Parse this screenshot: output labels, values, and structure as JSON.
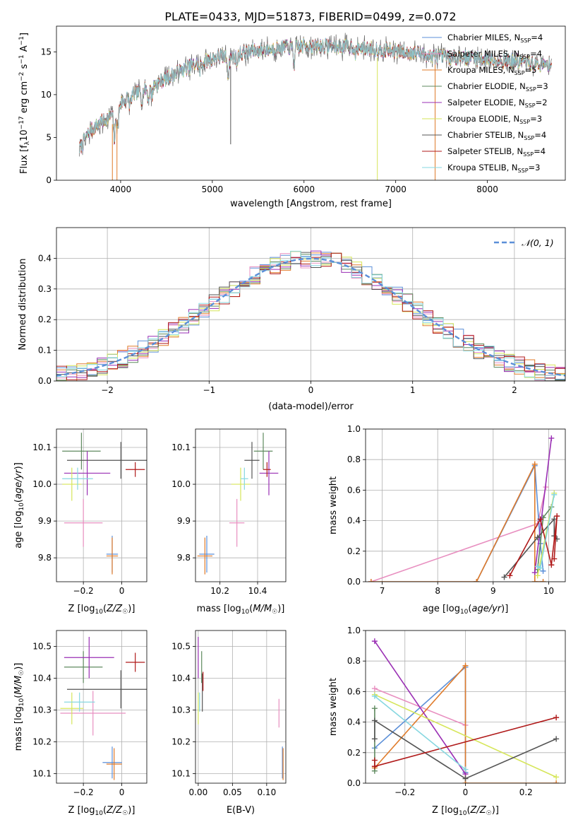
{
  "title": "PLATE=0433, MJD=51873, FIBERID=0499, z=0.072",
  "colors": {
    "Chabrier MILES": "#5b8fd8",
    "Salpeter MILES": "#e88fc0",
    "Kroupa MILES": "#e07b2a",
    "Chabrier ELODIE": "#5f8a5f",
    "Salpeter ELODIE": "#9a2fb4",
    "Kroupa ELODIE": "#d6e65a",
    "Chabrier STELIB": "#555555",
    "Salpeter STELIB": "#b01a1a",
    "Kroupa STELIB": "#86d7e0"
  },
  "chart_data": [
    {
      "id": "spectrum",
      "type": "line",
      "xlabel": "wavelength [Angstrom, rest frame]",
      "ylabel": "Flux [f_λ10^-17 erg cm^-2 s^-1 A^-1]",
      "xlim": [
        3300,
        8850
      ],
      "ylim": [
        0,
        18
      ],
      "xticks": [
        4000,
        5000,
        6000,
        7000,
        8000
      ],
      "yticks": [
        0,
        5,
        10,
        15
      ],
      "legend_position": "right",
      "series": [
        {
          "name": "Chabrier MILES",
          "nssp": "4"
        },
        {
          "name": "Salpeter MILES",
          "nssp": "4"
        },
        {
          "name": "Kroupa MILES",
          "nssp": "5"
        },
        {
          "name": "Chabrier ELODIE",
          "nssp": "3"
        },
        {
          "name": "Salpeter ELODIE",
          "nssp": "2"
        },
        {
          "name": "Kroupa ELODIE",
          "nssp": "3"
        },
        {
          "name": "Chabrier STELIB",
          "nssp": "4"
        },
        {
          "name": "Salpeter STELIB",
          "nssp": "4"
        },
        {
          "name": "Kroupa STELIB",
          "nssp": "3"
        }
      ],
      "continuum": [
        [
          3550,
          3.6
        ],
        [
          3650,
          5.5
        ],
        [
          3750,
          6.5
        ],
        [
          3850,
          7.2
        ],
        [
          3950,
          7.8
        ],
        [
          4000,
          9.0
        ],
        [
          4100,
          9.8
        ],
        [
          4200,
          10.3
        ],
        [
          4300,
          10.8
        ],
        [
          4400,
          11.3
        ],
        [
          4500,
          12.0
        ],
        [
          4600,
          12.5
        ],
        [
          4700,
          13.0
        ],
        [
          4800,
          13.5
        ],
        [
          4900,
          13.8
        ],
        [
          5000,
          14.2
        ],
        [
          5100,
          14.5
        ],
        [
          5200,
          14.3
        ],
        [
          5300,
          14.8
        ],
        [
          5400,
          15.0
        ],
        [
          5500,
          15.2
        ],
        [
          5600,
          15.3
        ],
        [
          5700,
          15.4
        ],
        [
          5800,
          15.5
        ],
        [
          5900,
          15.5
        ],
        [
          6000,
          15.7
        ],
        [
          6100,
          15.6
        ],
        [
          6200,
          15.7
        ],
        [
          6300,
          15.7
        ],
        [
          6400,
          15.6
        ],
        [
          6500,
          15.6
        ],
        [
          6600,
          15.5
        ],
        [
          6700,
          15.4
        ],
        [
          6800,
          15.3
        ],
        [
          6900,
          15.2
        ],
        [
          7000,
          15.1
        ],
        [
          7100,
          14.9
        ],
        [
          7200,
          15.0
        ],
        [
          7300,
          14.7
        ],
        [
          7400,
          14.5
        ],
        [
          7500,
          14.5
        ],
        [
          7600,
          14.3
        ],
        [
          7700,
          14.4
        ],
        [
          7800,
          14.3
        ],
        [
          7900,
          14.2
        ],
        [
          8000,
          14.2
        ],
        [
          8100,
          14.0
        ],
        [
          8200,
          14.0
        ],
        [
          8300,
          13.9
        ],
        [
          8400,
          13.8
        ],
        [
          8500,
          13.6
        ],
        [
          8600,
          13.5
        ],
        [
          8700,
          13.6
        ]
      ],
      "absorption": [
        [
          3933,
          3.0
        ],
        [
          3968,
          2.5
        ],
        [
          4102,
          1.2
        ],
        [
          4227,
          1.0
        ],
        [
          4304,
          1.5
        ],
        [
          4340,
          1.2
        ],
        [
          4861,
          1.0
        ],
        [
          5175,
          2.0
        ],
        [
          5270,
          1.0
        ],
        [
          5893,
          2.0
        ],
        [
          6563,
          1.0
        ]
      ],
      "spikes": [
        [
          3910,
          0
        ],
        [
          3960,
          0
        ],
        [
          5200,
          4.2
        ],
        [
          6800,
          0
        ],
        [
          7430,
          0
        ]
      ]
    },
    {
      "id": "residuals",
      "type": "histogram",
      "xlabel": "(data-model)/error",
      "ylabel": "Normed distribution",
      "xlim": [
        -2.5,
        2.5
      ],
      "ylim": [
        0,
        0.5
      ],
      "xticks": [
        -2,
        -1,
        0,
        1,
        2
      ],
      "yticks": [
        0.0,
        0.1,
        0.2,
        0.3,
        0.4
      ],
      "legend": "𝒩(0, 1)",
      "bin_width": 0.1,
      "reference_pdf": "normal(0,1)"
    },
    {
      "id": "age-vs-Z",
      "type": "errorbar",
      "xlabel": "Z [log₁₀(Z/Z☉)]",
      "ylabel": "age  [log₁₀(age/yr)]",
      "xlim": [
        -0.34,
        0.13
      ],
      "ylim": [
        9.735,
        10.15
      ],
      "xticks": [
        -0.2,
        0.0
      ],
      "yticks": [
        9.8,
        9.9,
        10.0,
        10.1
      ],
      "points": [
        {
          "model": "Chabrier MILES",
          "x": -0.05,
          "xerr": 0.03,
          "y": 9.81,
          "yerr": 0.05
        },
        {
          "model": "Salpeter MILES",
          "x": -0.2,
          "xerr": 0.1,
          "y": 9.895,
          "yerr": 0.065
        },
        {
          "model": "Kroupa MILES",
          "x": -0.05,
          "xerr": 0.03,
          "y": 9.805,
          "yerr": 0.05
        },
        {
          "model": "Chabrier ELODIE",
          "x": -0.21,
          "xerr": 0.1,
          "y": 10.09,
          "yerr": 0.05
        },
        {
          "model": "Salpeter ELODIE",
          "x": -0.18,
          "xerr": 0.12,
          "y": 10.03,
          "yerr": 0.06
        },
        {
          "model": "Kroupa ELODIE",
          "x": -0.26,
          "xerr": 0.05,
          "y": 10.0,
          "yerr": 0.045
        },
        {
          "model": "Chabrier STELIB",
          "x": -0.005,
          "xerr": 0.28,
          "y": 10.065,
          "yerr": 0.05
        },
        {
          "model": "Salpeter STELIB",
          "x": 0.07,
          "xerr": 0.05,
          "y": 10.04,
          "yerr": 0.02
        },
        {
          "model": "Kroupa STELIB",
          "x": -0.23,
          "xerr": 0.08,
          "y": 10.015,
          "yerr": 0.03
        }
      ]
    },
    {
      "id": "age-vs-mass",
      "type": "errorbar",
      "xlabel": "mass [log₁₀(M/M☉)]",
      "ylabel": "",
      "xlim": [
        10.07,
        10.55
      ],
      "ylim": [
        9.735,
        10.15
      ],
      "xticks": [
        10.2,
        10.4
      ],
      "yticks": [
        9.8,
        9.9,
        10.0,
        10.1
      ],
      "points": [
        {
          "model": "Chabrier MILES",
          "x": 10.13,
          "xerr": 0.04,
          "y": 9.81,
          "yerr": 0.05
        },
        {
          "model": "Salpeter MILES",
          "x": 10.29,
          "xerr": 0.04,
          "y": 9.895,
          "yerr": 0.065
        },
        {
          "model": "Kroupa MILES",
          "x": 10.12,
          "xerr": 0.04,
          "y": 9.805,
          "yerr": 0.05
        },
        {
          "model": "Chabrier ELODIE",
          "x": 10.43,
          "xerr": 0.05,
          "y": 10.09,
          "yerr": 0.05
        },
        {
          "model": "Salpeter ELODIE",
          "x": 10.46,
          "xerr": 0.05,
          "y": 10.03,
          "yerr": 0.06
        },
        {
          "model": "Kroupa ELODIE",
          "x": 10.31,
          "xerr": 0.05,
          "y": 10.0,
          "yerr": 0.045
        },
        {
          "model": "Chabrier STELIB",
          "x": 10.37,
          "xerr": 0.04,
          "y": 10.065,
          "yerr": 0.05
        },
        {
          "model": "Salpeter STELIB",
          "x": 10.45,
          "xerr": 0.02,
          "y": 10.04,
          "yerr": 0.02
        },
        {
          "model": "Kroupa STELIB",
          "x": 10.33,
          "xerr": 0.02,
          "y": 10.015,
          "yerr": 0.03
        }
      ]
    },
    {
      "id": "mass-weight-vs-age",
      "type": "line",
      "xlabel": "age  [log₁₀(age/yr)]",
      "ylabel": "mass weight",
      "xlim": [
        6.7,
        10.3
      ],
      "ylim": [
        0,
        1.0
      ],
      "xticks": [
        7,
        8,
        9,
        10
      ],
      "yticks": [
        0.0,
        0.2,
        0.4,
        0.6,
        0.8,
        1.0
      ],
      "series": [
        {
          "model": "Salpeter MILES",
          "x": [
            6.8,
            9.8,
            9.95
          ],
          "y": [
            0.0,
            0.38,
            0.62
          ]
        },
        {
          "model": "Chabrier MILES",
          "x": [
            8.7,
            9.75,
            9.85,
            9.9
          ],
          "y": [
            0.0,
            0.76,
            0.25,
            0.07
          ]
        },
        {
          "model": "Kroupa MILES",
          "x": [
            6.8,
            8.7,
            9.75,
            9.75,
            9.9
          ],
          "y": [
            0.0,
            0.0,
            0.77,
            0.0,
            0.0
          ]
        },
        {
          "model": "Chabrier ELODIE",
          "x": [
            9.8,
            9.9,
            10.05
          ],
          "y": [
            0.08,
            0.42,
            0.49
          ]
        },
        {
          "model": "Salpeter ELODIE",
          "x": [
            9.75,
            10.05
          ],
          "y": [
            0.06,
            0.94
          ]
        },
        {
          "model": "Kroupa ELODIE",
          "x": [
            9.8,
            10.1
          ],
          "y": [
            0.04,
            0.58
          ]
        },
        {
          "model": "Chabrier STELIB",
          "x": [
            9.2,
            9.8,
            10.1,
            10.1,
            10.15
          ],
          "y": [
            0.03,
            0.29,
            0.41,
            0.3,
            0.28
          ]
        },
        {
          "model": "Salpeter STELIB",
          "x": [
            9.3,
            9.85,
            10.05,
            10.15,
            10.1
          ],
          "y": [
            0.04,
            0.41,
            0.11,
            0.43,
            0.15
          ]
        },
        {
          "model": "Kroupa STELIB",
          "x": [
            9.8,
            9.85,
            10.1
          ],
          "y": [
            0.1,
            0.09,
            0.57
          ]
        }
      ]
    },
    {
      "id": "mass-vs-Z",
      "type": "errorbar",
      "xlabel": "Z [log₁₀(Z/Z☉)]",
      "ylabel": "mass [log₁₀(M/M☉)]",
      "xlim": [
        -0.34,
        0.13
      ],
      "ylim": [
        10.07,
        10.55
      ],
      "xticks": [
        -0.2,
        0.0
      ],
      "yticks": [
        10.1,
        10.2,
        10.3,
        10.4,
        10.5
      ],
      "points": [
        {
          "model": "Chabrier MILES",
          "x": -0.05,
          "xerr": 0.05,
          "y": 10.135,
          "yerr": 0.05
        },
        {
          "model": "Salpeter MILES",
          "x": -0.15,
          "xerr": 0.17,
          "y": 10.29,
          "yerr": 0.07
        },
        {
          "model": "Kroupa MILES",
          "x": -0.04,
          "xerr": 0.04,
          "y": 10.13,
          "yerr": 0.05
        },
        {
          "model": "Chabrier ELODIE",
          "x": -0.2,
          "xerr": 0.1,
          "y": 10.435,
          "yerr": 0.05
        },
        {
          "model": "Salpeter ELODIE",
          "x": -0.17,
          "xerr": 0.13,
          "y": 10.465,
          "yerr": 0.065
        },
        {
          "model": "Kroupa ELODIE",
          "x": -0.26,
          "xerr": 0.06,
          "y": 10.305,
          "yerr": 0.05
        },
        {
          "model": "Chabrier STELIB",
          "x": -0.005,
          "xerr": 0.28,
          "y": 10.365,
          "yerr": 0.06
        },
        {
          "model": "Salpeter STELIB",
          "x": 0.07,
          "xerr": 0.05,
          "y": 10.45,
          "yerr": 0.03
        },
        {
          "model": "Kroupa STELIB",
          "x": -0.22,
          "xerr": 0.08,
          "y": 10.325,
          "yerr": 0.03
        }
      ]
    },
    {
      "id": "mass-vs-ebv",
      "type": "errorbar",
      "xlabel": "E(B-V)",
      "ylabel": "",
      "xlim": [
        -0.004,
        0.128
      ],
      "ylim": [
        10.07,
        10.55
      ],
      "xticks": [
        0.0,
        0.05,
        0.1
      ],
      "xticklabels": [
        "0.00",
        "0.05",
        "0.10"
      ],
      "yticks": [
        10.1,
        10.2,
        10.3,
        10.4,
        10.5
      ],
      "points": [
        {
          "model": "Chabrier MILES",
          "x": 0.123,
          "xerr": 0,
          "y": 10.135,
          "yerr": 0.05
        },
        {
          "model": "Salpeter MILES",
          "x": 0.118,
          "xerr": 0,
          "y": 10.29,
          "yerr": 0.045
        },
        {
          "model": "Kroupa MILES",
          "x": 0.124,
          "xerr": 0,
          "y": 10.13,
          "yerr": 0.05
        },
        {
          "model": "Chabrier ELODIE",
          "x": 0.005,
          "xerr": 0,
          "y": 10.435,
          "yerr": 0.05
        },
        {
          "model": "Salpeter ELODIE",
          "x": 0.0,
          "xerr": 0,
          "y": 10.465,
          "yerr": 0.065
        },
        {
          "model": "Kroupa ELODIE",
          "x": 0.0,
          "xerr": 0,
          "y": 10.305,
          "yerr": 0.05
        },
        {
          "model": "Chabrier STELIB",
          "x": 0.006,
          "xerr": 0,
          "y": 10.355,
          "yerr": 0.06
        },
        {
          "model": "Salpeter STELIB",
          "x": 0.007,
          "xerr": 0,
          "y": 10.39,
          "yerr": 0.03
        },
        {
          "model": "Kroupa STELIB",
          "x": 0.002,
          "xerr": 0,
          "y": 10.325,
          "yerr": 0.03
        }
      ]
    },
    {
      "id": "mass-weight-vs-Z",
      "type": "line",
      "xlabel": "Z [log₁₀(Z/Z☉)]",
      "ylabel": "mass weight",
      "xlim": [
        -0.33,
        0.33
      ],
      "ylim": [
        0,
        1.0
      ],
      "xticks": [
        -0.2,
        0.0,
        0.2
      ],
      "yticks": [
        0.0,
        0.2,
        0.4,
        0.6,
        0.8,
        1.0
      ],
      "series": [
        {
          "model": "Chabrier MILES",
          "x": [
            -0.3,
            0.0,
            0.0
          ],
          "y": [
            0.23,
            0.76,
            0.07
          ]
        },
        {
          "model": "Salpeter MILES",
          "x": [
            -0.3,
            0.0
          ],
          "y": [
            0.62,
            0.38
          ]
        },
        {
          "model": "Kroupa MILES",
          "x": [
            -0.3,
            0.0,
            0.0,
            0.3
          ],
          "y": [
            0.1,
            0.77,
            0.0,
            0.0
          ]
        },
        {
          "model": "Chabrier ELODIE",
          "x": [
            -0.3,
            -0.3
          ],
          "y": [
            0.49,
            0.08
          ]
        },
        {
          "model": "Salpeter ELODIE",
          "x": [
            -0.3,
            0.0
          ],
          "y": [
            0.93,
            0.06
          ]
        },
        {
          "model": "Kroupa ELODIE",
          "x": [
            -0.3,
            0.3
          ],
          "y": [
            0.58,
            0.04
          ]
        },
        {
          "model": "Chabrier STELIB",
          "x": [
            -0.3,
            -0.3,
            0.0,
            0.3
          ],
          "y": [
            0.29,
            0.41,
            0.03,
            0.29
          ]
        },
        {
          "model": "Salpeter STELIB",
          "x": [
            -0.3,
            -0.3,
            0.3
          ],
          "y": [
            0.15,
            0.11,
            0.43
          ]
        },
        {
          "model": "Kroupa STELIB",
          "x": [
            -0.3,
            0.0
          ],
          "y": [
            0.57,
            0.09
          ]
        }
      ]
    }
  ]
}
